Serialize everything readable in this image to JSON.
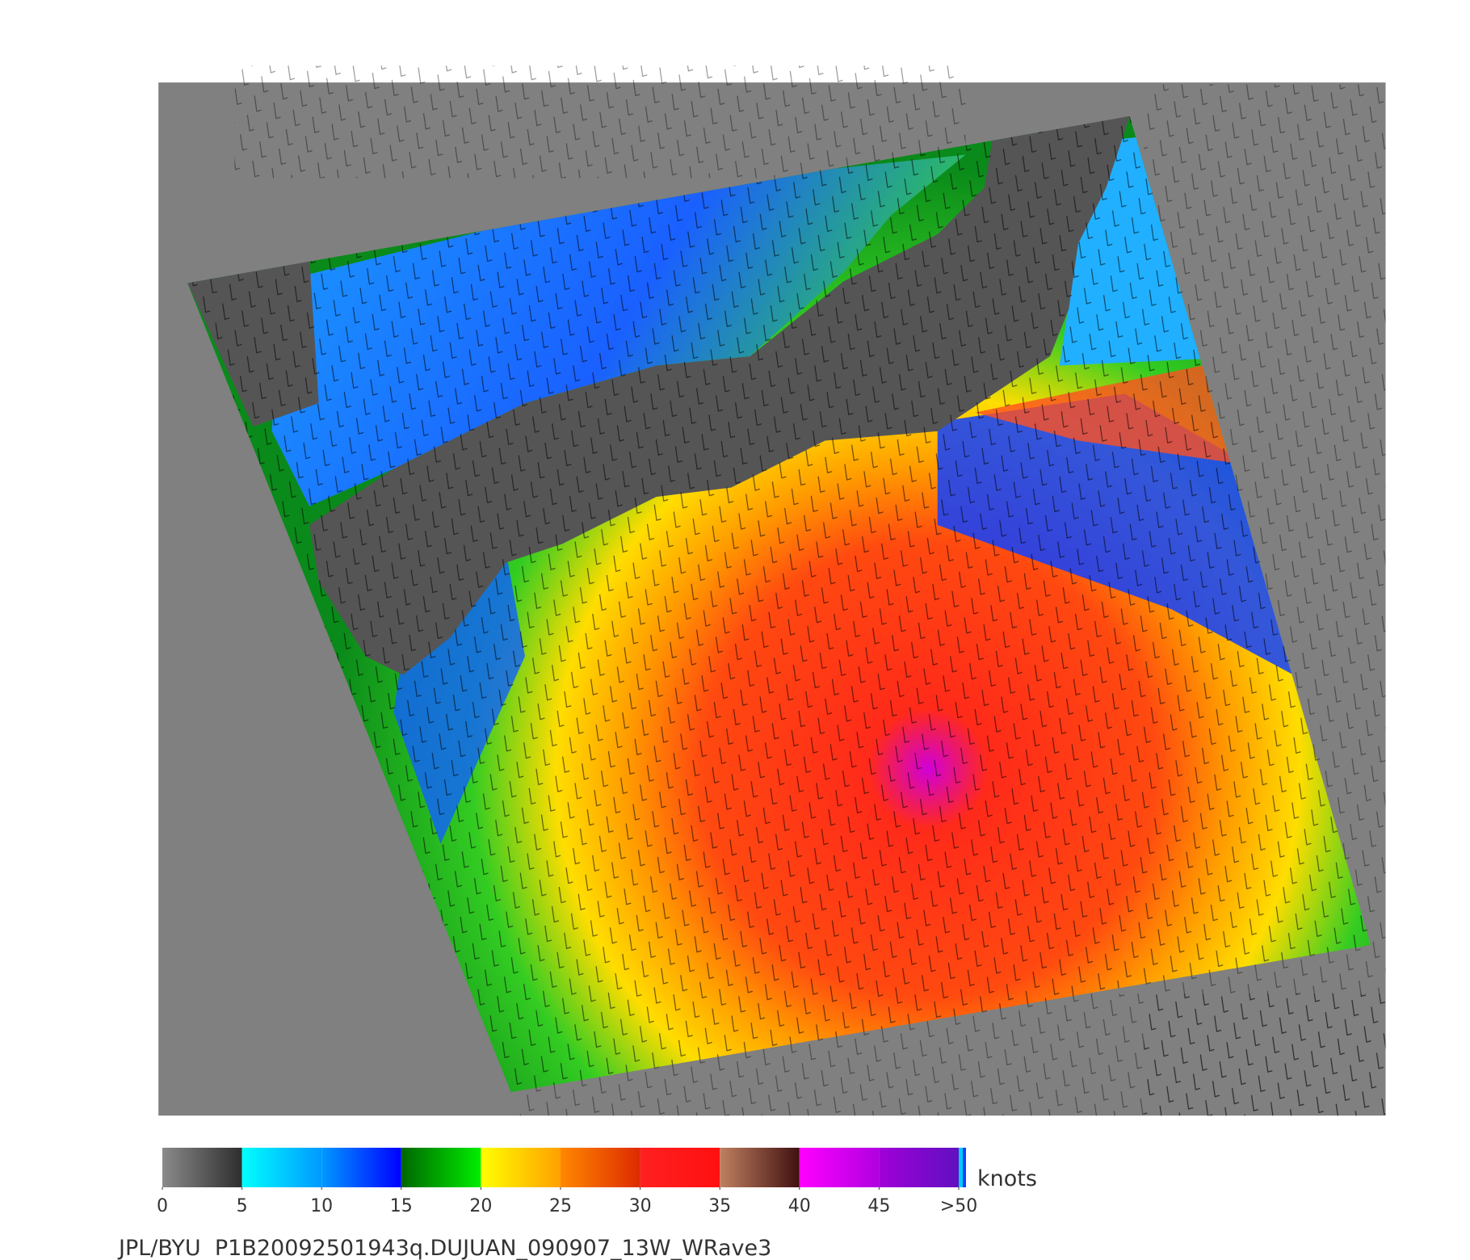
{
  "colorbar": {
    "unit": "knots",
    "range": [
      0,
      50
    ],
    "ticks": [
      0,
      5,
      10,
      15,
      20,
      25,
      30,
      35,
      40,
      45,
      {
        "value": 50,
        "label": ">50"
      }
    ],
    "colors": [
      [
        "#8a8a8a",
        "#2e2e2e"
      ],
      [
        "#00ffff",
        "#0099ff"
      ],
      [
        "#0099ff",
        "#0000ff"
      ],
      [
        "#006600",
        "#00ee00"
      ],
      [
        "#ffff00",
        "#ffa000"
      ],
      [
        "#ff8800",
        "#dd2a00"
      ],
      [
        "#ff2020",
        "#ff1010"
      ],
      [
        "#c08060",
        "#401010"
      ],
      [
        "#ff00ff",
        "#b000e0"
      ],
      [
        "#a000d8",
        "#6010c0"
      ]
    ]
  },
  "footer": "JPL/BYU  P1B20092501943q.DUJUAN_090907_13W_WRave3"
}
